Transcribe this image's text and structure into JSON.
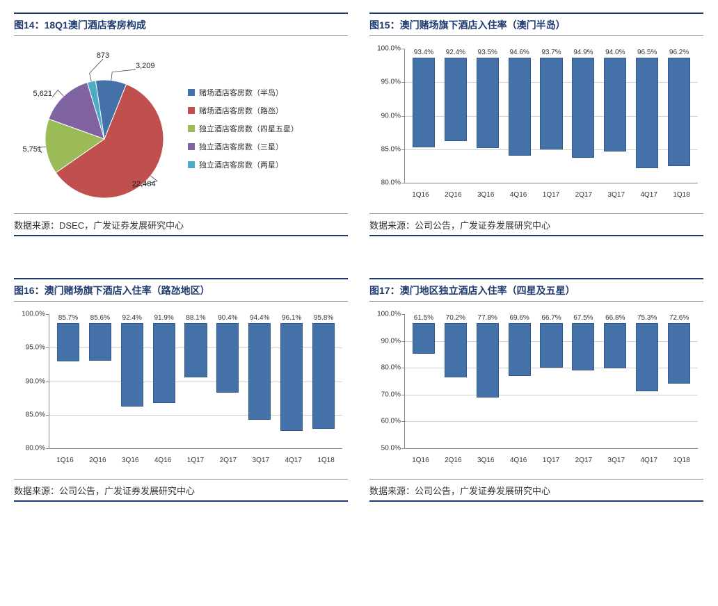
{
  "panels": {
    "p14": {
      "title": "图14：18Q1澳门酒店客房构成",
      "source": "数据来源：DSEC，广发证券发展研究中心",
      "pie": {
        "slices": [
          {
            "label": "赌场酒店客房数（半岛）",
            "value": 3209,
            "display": "3,209",
            "color": "#4472a8"
          },
          {
            "label": "赌场酒店客房数（路氹）",
            "value": 22484,
            "display": "22,484",
            "color": "#c0504d"
          },
          {
            "label": "独立酒店客房数（四星五星）",
            "value": 5751,
            "display": "5,751",
            "color": "#9bbb59"
          },
          {
            "label": "独立酒店客房数（三星）",
            "value": 5621,
            "display": "5,621",
            "color": "#8064a2"
          },
          {
            "label": "独立酒店客房数（两星）",
            "value": 873,
            "display": "873",
            "color": "#4bacc6"
          }
        ]
      }
    },
    "p15": {
      "title": "图15：澳门赌场旗下酒店入住率（澳门半岛）",
      "source": "数据来源：公司公告，广发证券发展研究中心",
      "bar": {
        "ymin": 80,
        "ymax": 100,
        "ystep": 5,
        "categories": [
          "1Q16",
          "2Q16",
          "3Q16",
          "4Q16",
          "1Q17",
          "2Q17",
          "3Q17",
          "4Q17",
          "1Q18"
        ],
        "values": [
          93.4,
          92.4,
          93.5,
          94.6,
          93.7,
          94.9,
          94.0,
          96.5,
          96.2
        ],
        "bar_color": "#4472a8",
        "grid_color": "#d0d0d0"
      }
    },
    "p16": {
      "title": "图16：澳门赌场旗下酒店入住率（路氹地区）",
      "source": "数据来源：公司公告，广发证券发展研究中心",
      "bar": {
        "ymin": 80,
        "ymax": 100,
        "ystep": 5,
        "categories": [
          "1Q16",
          "2Q16",
          "3Q16",
          "4Q16",
          "1Q17",
          "2Q17",
          "3Q17",
          "4Q17",
          "1Q18"
        ],
        "values": [
          85.7,
          85.6,
          92.4,
          91.9,
          88.1,
          90.4,
          94.4,
          96.1,
          95.8
        ],
        "bar_color": "#4472a8",
        "grid_color": "#d0d0d0"
      }
    },
    "p17": {
      "title": "图17：澳门地区独立酒店入住率（四星及五星）",
      "source": "数据来源：公司公告，广发证券发展研究中心",
      "bar": {
        "ymin": 50,
        "ymax": 100,
        "ystep": 10,
        "categories": [
          "1Q16",
          "2Q16",
          "3Q16",
          "4Q16",
          "1Q17",
          "2Q17",
          "3Q17",
          "4Q17",
          "1Q18"
        ],
        "values": [
          61.5,
          70.2,
          77.8,
          69.6,
          66.7,
          67.5,
          66.8,
          75.3,
          72.6
        ],
        "bar_color": "#4472a8",
        "grid_color": "#d0d0d0"
      }
    }
  }
}
